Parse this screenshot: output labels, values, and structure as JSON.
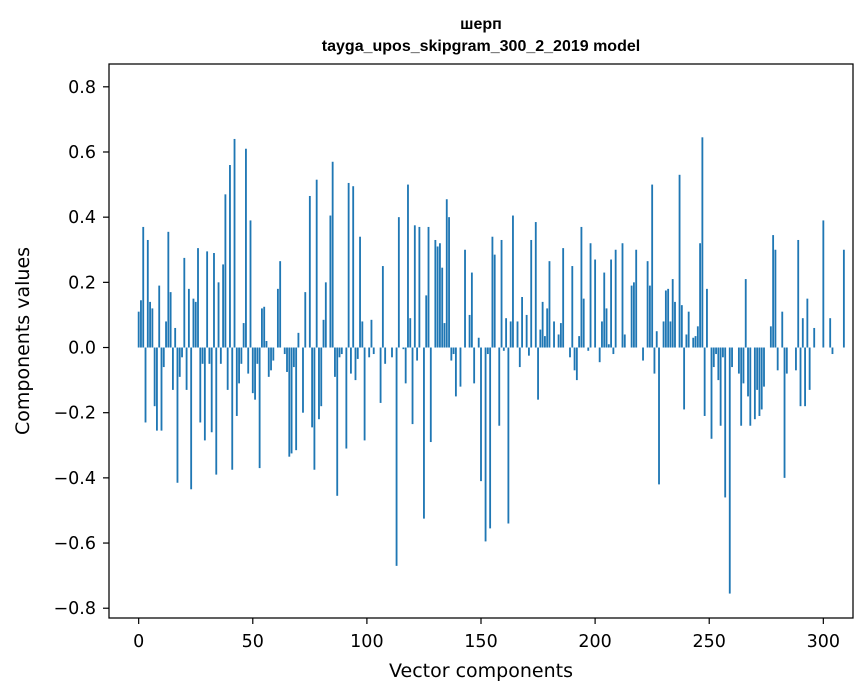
{
  "chart_data": {
    "type": "bar",
    "title_lines": [
      "шерп",
      "tayga_upos_skipgram_300_2_2019 model"
    ],
    "xlabel": "Vector components",
    "ylabel": "Components values",
    "xlim": [
      -13,
      313
    ],
    "ylim": [
      -0.83,
      0.87
    ],
    "xticks": [
      0,
      50,
      100,
      150,
      200,
      250,
      300
    ],
    "yticks": [
      -0.8,
      -0.6,
      -0.4,
      -0.2,
      0.0,
      0.2,
      0.4,
      0.6,
      0.8
    ],
    "ytick_labels": [
      "−0.8",
      "−0.6",
      "−0.4",
      "−0.2",
      "0.0",
      "0.2",
      "0.4",
      "0.6",
      "0.8"
    ],
    "bar_color": "#1f77b4",
    "grid": false,
    "values": [
      0.11,
      0.145,
      0.37,
      -0.23,
      0.33,
      0.14,
      0.12,
      -0.18,
      -0.255,
      0.19,
      -0.255,
      -0.06,
      0.08,
      0.355,
      0.17,
      -0.13,
      0.06,
      -0.415,
      -0.09,
      -0.03,
      0.275,
      -0.13,
      0.18,
      -0.435,
      0.15,
      0.14,
      0.305,
      -0.23,
      -0.05,
      -0.285,
      0.295,
      -0.05,
      -0.26,
      0.29,
      -0.39,
      0.2,
      -0.05,
      0.255,
      0.47,
      -0.13,
      0.56,
      -0.375,
      0.64,
      -0.21,
      -0.11,
      -0.05,
      0.075,
      0.61,
      -0.08,
      0.39,
      -0.14,
      -0.16,
      -0.05,
      -0.37,
      0.12,
      0.125,
      0.02,
      -0.09,
      -0.07,
      -0.04,
      0.0,
      0.18,
      0.265,
      0.0,
      -0.02,
      -0.075,
      -0.335,
      -0.325,
      -0.06,
      -0.315,
      0.045,
      0.0,
      -0.2,
      0.17,
      0.0,
      0.465,
      -0.245,
      -0.375,
      0.515,
      -0.22,
      -0.18,
      0.085,
      0.2,
      0.0,
      0.405,
      0.57,
      -0.09,
      -0.455,
      -0.03,
      -0.02,
      0.0,
      -0.31,
      0.505,
      -0.08,
      0.495,
      -0.1,
      -0.035,
      0.34,
      0.08,
      -0.285,
      0.0,
      -0.03,
      0.085,
      -0.02,
      0.0,
      0.0,
      -0.17,
      0.25,
      -0.05,
      0.0,
      0.0,
      -0.03,
      0.0,
      -0.67,
      0.4,
      0.0,
      -0.005,
      -0.11,
      0.5,
      0.09,
      -0.235,
      0.375,
      -0.04,
      0.37,
      0.0,
      -0.525,
      0.16,
      0.37,
      -0.29,
      0.0,
      0.33,
      0.31,
      0.32,
      0.245,
      0.075,
      0.455,
      0.4,
      -0.04,
      -0.02,
      -0.15,
      0.0,
      -0.12,
      0.0,
      0.3,
      0.0,
      0.1,
      0.23,
      -0.11,
      0.0,
      0.03,
      -0.41,
      0.0,
      -0.595,
      -0.02,
      -0.555,
      0.34,
      0.285,
      0.0,
      -0.24,
      0.33,
      -0.01,
      0.09,
      -0.54,
      0.08,
      0.405,
      0.0,
      0.08,
      -0.06,
      0.155,
      0.0,
      0.1,
      -0.025,
      0.33,
      0.0,
      0.385,
      -0.16,
      0.055,
      0.14,
      0.035,
      0.12,
      0.265,
      0.0,
      0.08,
      0.0,
      0.04,
      0.075,
      0.305,
      0.0,
      0.0,
      -0.03,
      0.25,
      -0.07,
      -0.1,
      0.035,
      0.37,
      0.15,
      0.0,
      -0.01,
      0.32,
      0.0,
      0.27,
      0.0,
      -0.045,
      0.08,
      0.23,
      0.12,
      0.01,
      0.27,
      -0.02,
      0.3,
      0.0,
      0.0,
      0.32,
      0.04,
      0.0,
      0.0,
      0.19,
      0.2,
      0.3,
      0.0,
      0.0,
      -0.04,
      0.0,
      0.265,
      0.19,
      0.5,
      -0.08,
      0.05,
      -0.42,
      0.0,
      0.08,
      0.175,
      0.18,
      0.08,
      0.21,
      0.14,
      0.0,
      0.53,
      0.13,
      -0.19,
      0.04,
      0.11,
      0.0,
      0.03,
      0.035,
      0.065,
      0.32,
      0.645,
      -0.21,
      0.18,
      0.0,
      -0.28,
      -0.06,
      -0.02,
      -0.1,
      -0.24,
      -0.03,
      -0.46,
      0.0,
      -0.755,
      -0.06,
      0.0,
      0.0,
      -0.08,
      -0.24,
      -0.11,
      0.21,
      -0.15,
      -0.24,
      0.0,
      -0.22,
      -0.13,
      -0.21,
      -0.19,
      -0.12,
      0.0,
      0.0,
      0.065,
      0.345,
      0.3,
      -0.07,
      0.0,
      0.11,
      -0.4,
      -0.08,
      0.0,
      0.0,
      0.0,
      -0.07,
      0.33,
      -0.18,
      0.09,
      -0.18,
      0.15,
      -0.13,
      0.0,
      0.06,
      0.0,
      0.0,
      0.0,
      0.39,
      0.0,
      0.0,
      0.09,
      -0.02,
      0.0,
      0.0,
      0.0,
      0.0,
      0.3,
      0.0,
      0.0
    ]
  }
}
